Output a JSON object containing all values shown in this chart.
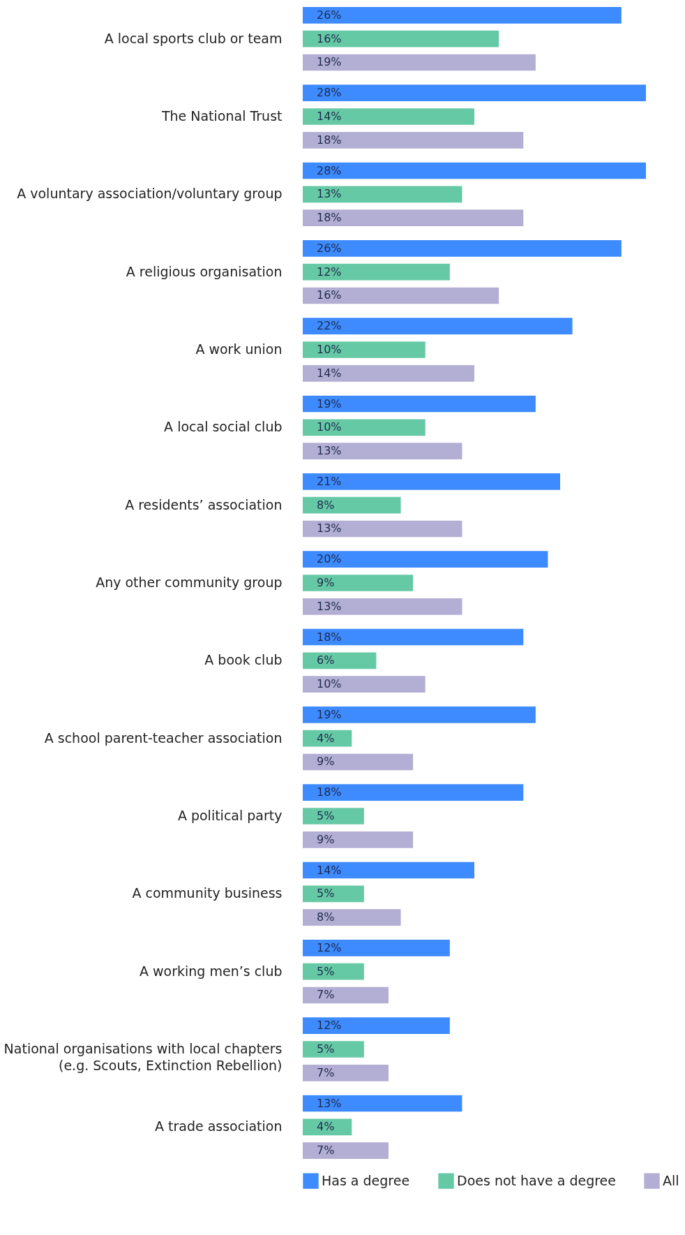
{
  "chart_data": {
    "type": "bar",
    "orientation": "horizontal",
    "legend": "bottom",
    "grid": false,
    "tick_labels": "y",
    "categories": [
      "A local sports club or team",
      "The National Trust",
      "A voluntary association/voluntary group",
      "A religious organisation",
      "A work union",
      "A local social club",
      "A residents’ association",
      "Any other community group",
      "A book club",
      "A school parent-teacher association",
      "A political party",
      "A community business",
      "A working men’s club",
      "National organisations with local chapters (e.g. Scouts, Extinction Rebellion)",
      "A trade association"
    ],
    "series": [
      {
        "name": "Has a degree",
        "color": "#3d8bff",
        "values": [
          26,
          28,
          28,
          26,
          22,
          19,
          21,
          20,
          18,
          19,
          18,
          14,
          12,
          12,
          13
        ],
        "value_labels": [
          "26%",
          "28%",
          "28%",
          "26%",
          "22%",
          "19%",
          "21%",
          "20%",
          "18%",
          "19%",
          "18%",
          "14%",
          "12%",
          "12%",
          "13%"
        ]
      },
      {
        "name": "Does not have a degree",
        "color": "#66c9a6",
        "values": [
          16,
          14,
          13,
          12,
          10,
          10,
          8,
          9,
          6,
          4,
          5,
          5,
          5,
          5,
          4
        ],
        "value_labels": [
          "16%",
          "14%",
          "13%",
          "12%",
          "10%",
          "10%",
          "8%",
          "9%",
          "6%",
          "4%",
          "5%",
          "5%",
          "5%",
          "5%",
          "4%"
        ]
      },
      {
        "name": "All",
        "color": "#b3aed4",
        "values": [
          19,
          18,
          18,
          16,
          14,
          13,
          13,
          13,
          10,
          9,
          9,
          8,
          7,
          7,
          7
        ],
        "value_labels": [
          "19%",
          "18%",
          "18%",
          "16%",
          "14%",
          "13%",
          "13%",
          "13%",
          "10%",
          "9%",
          "9%",
          "8%",
          "7%",
          "7%",
          "7%"
        ]
      }
    ]
  }
}
